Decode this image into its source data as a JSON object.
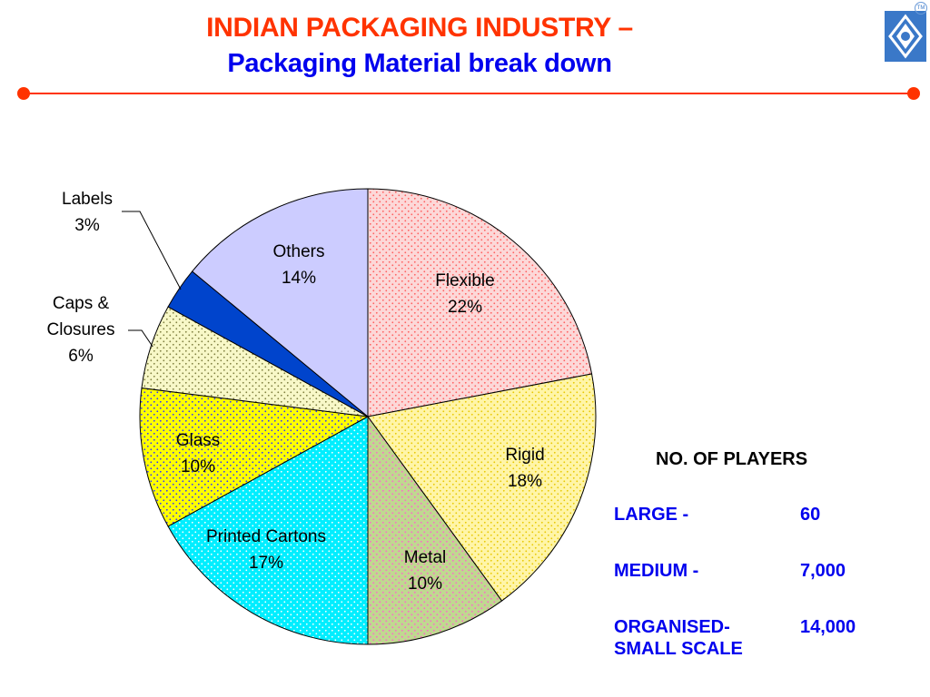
{
  "header": {
    "title": "INDIAN PACKAGING INDUSTRY –",
    "subtitle": "Packaging Material break down",
    "trademark": "TM"
  },
  "colors": {
    "title": "#ff3300",
    "subtitle": "#0000ee",
    "rule": "#ff3300",
    "logo": "#3a78c8"
  },
  "chart_data": {
    "type": "pie",
    "start_angle": "12 o'clock, clockwise",
    "slices": [
      {
        "label": "Flexible",
        "value": 22,
        "value_label": "22%",
        "fill": "#fcd8d8",
        "dot": "#ff6060"
      },
      {
        "label": "Rigid",
        "value": 18,
        "value_label": "18%",
        "fill": "#fff5a8",
        "dot": "#e8c800"
      },
      {
        "label": "Metal",
        "value": 10,
        "value_label": "10%",
        "fill": "#c0d890",
        "dot": "#ff66cc"
      },
      {
        "label": "Printed Cartons",
        "value": 17,
        "value_label": "17%",
        "fill": "#00eeff",
        "dot": "#ffffff"
      },
      {
        "label": "Glass",
        "value": 10,
        "value_label": "10%",
        "fill": "#ffff00",
        "dot": "#3333ff"
      },
      {
        "label": "Caps & Closures",
        "value": 6,
        "value_label": "6%",
        "fill": "#f8f8c8",
        "dot": "#808040"
      },
      {
        "label": "Labels",
        "value": 3,
        "value_label": "3%",
        "fill": "#0044cc",
        "dot": "#0044cc"
      },
      {
        "label": "Others",
        "value": 14,
        "value_label": "14%",
        "fill": "#ccccff",
        "dot": "#ccccff"
      }
    ]
  },
  "players": {
    "heading": "NO.  OF PLAYERS",
    "rows": [
      {
        "label": "LARGE -",
        "value": "60"
      },
      {
        "label": "MEDIUM -",
        "value": "7,000"
      },
      {
        "label": "ORGANISED-",
        "label2": "SMALL  SCALE",
        "value": "14,000"
      }
    ]
  }
}
